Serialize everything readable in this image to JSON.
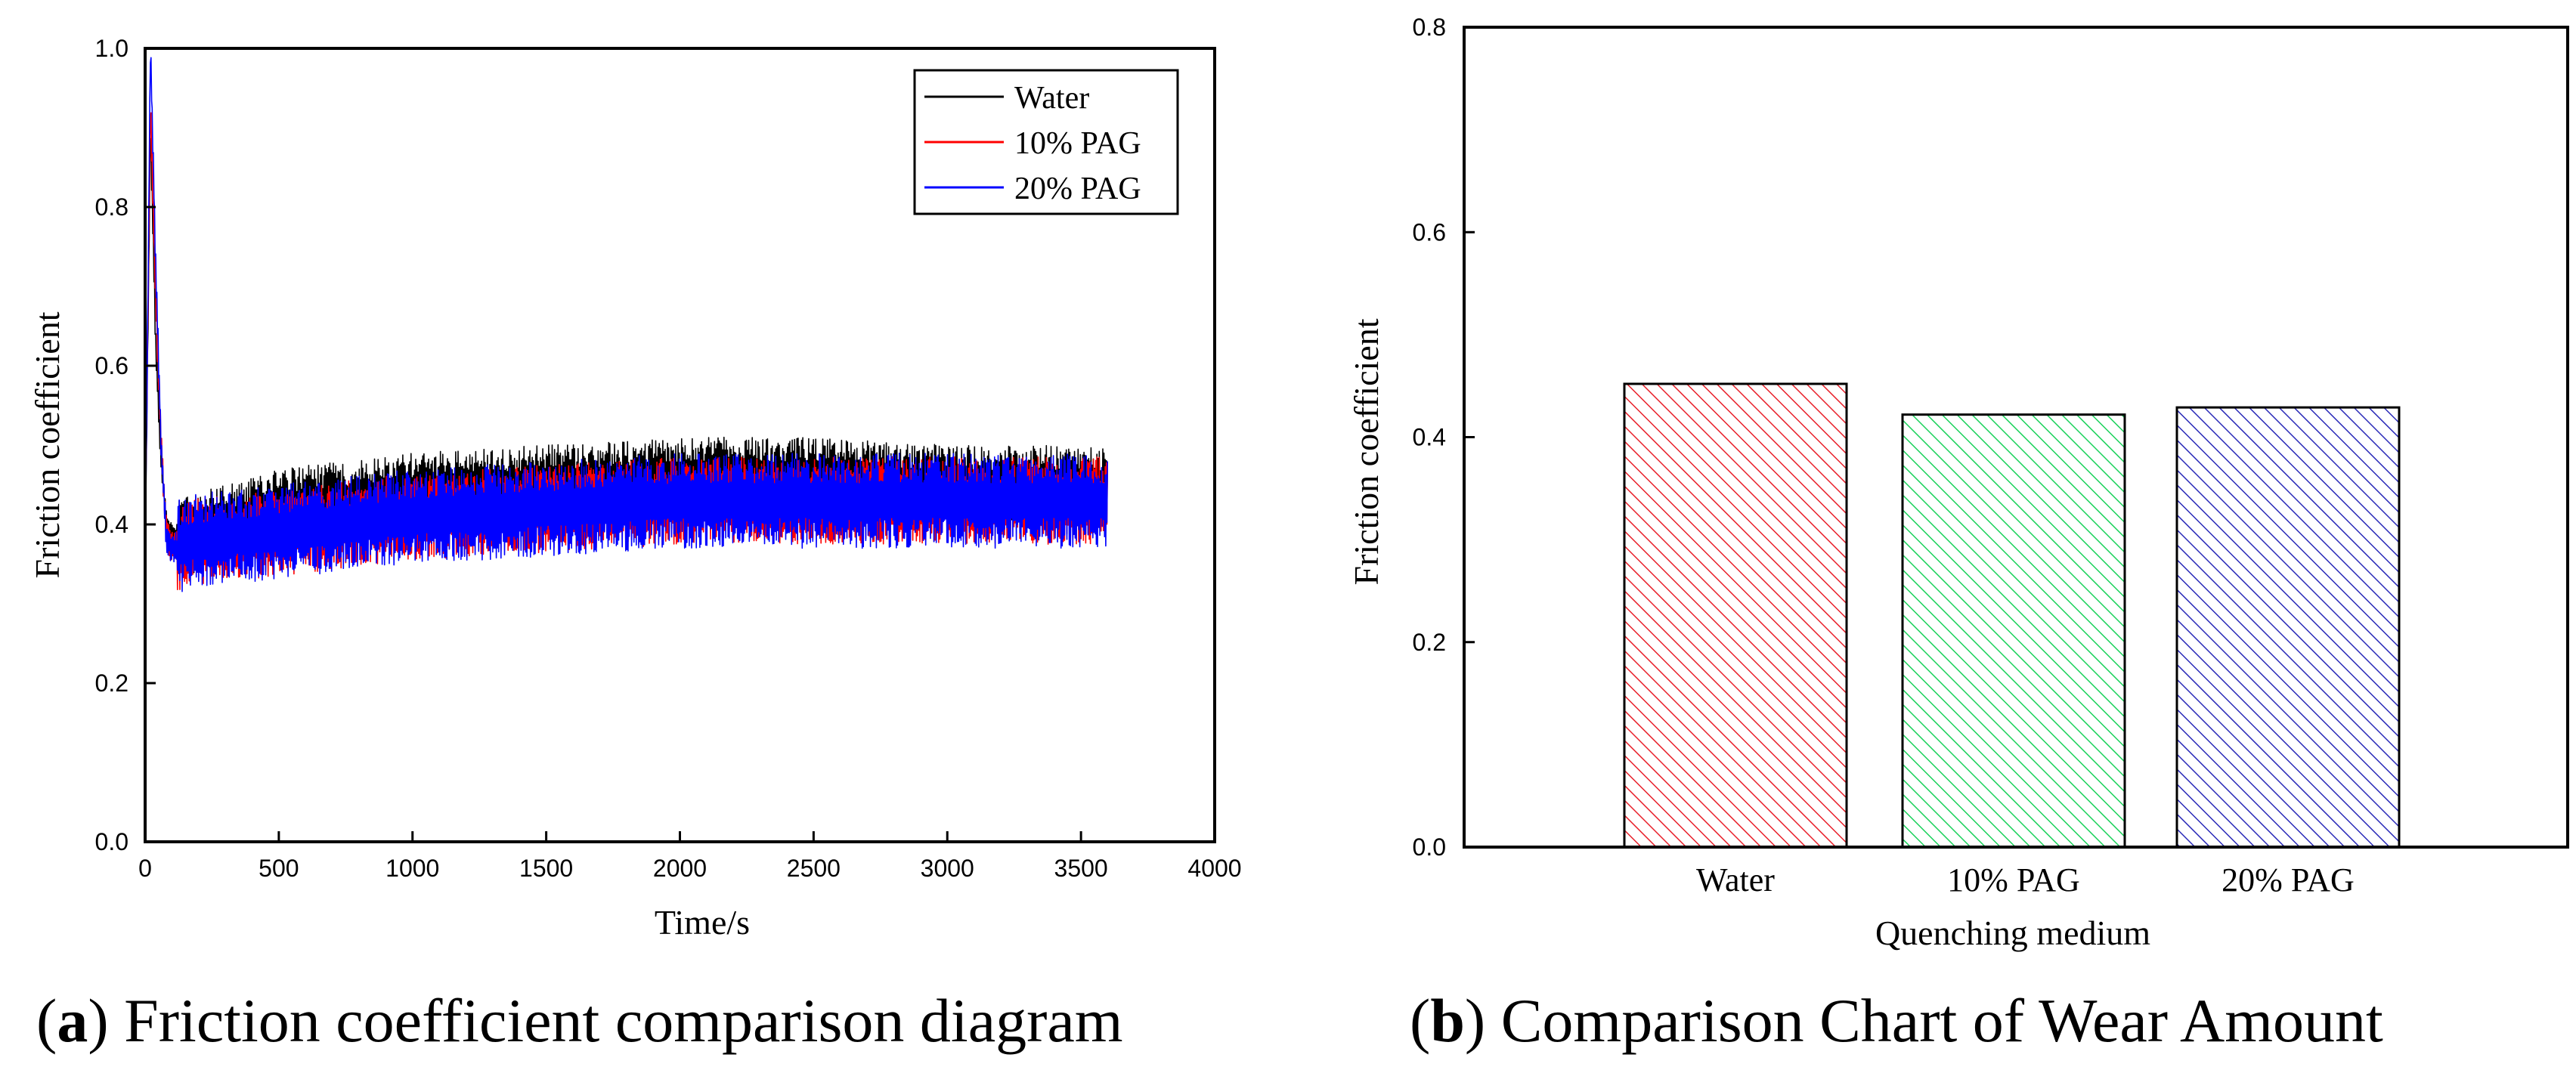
{
  "chart_data": [
    {
      "type": "line",
      "title": "",
      "xlabel": "Time/s",
      "ylabel": "Friction coefficient",
      "xlim": [
        0,
        4000
      ],
      "ylim": [
        0.0,
        1.0
      ],
      "xticks": [
        "0",
        "500",
        "1000",
        "1500",
        "2000",
        "2500",
        "3000",
        "3500",
        "4000"
      ],
      "yticks": [
        "0.0",
        "0.2",
        "0.4",
        "0.6",
        "0.8",
        "1.0"
      ],
      "legend_position": "top-right",
      "series": [
        {
          "name": "Water",
          "color": "#000000",
          "x": [
            0,
            20,
            40,
            60,
            80,
            100,
            200,
            500,
            1000,
            1500,
            2000,
            2500,
            3000,
            3500,
            3600
          ],
          "y": [
            0.36,
            0.9,
            0.62,
            0.48,
            0.4,
            0.38,
            0.39,
            0.42,
            0.44,
            0.45,
            0.46,
            0.46,
            0.45,
            0.45,
            0.45
          ]
        },
        {
          "name": "10% PAG",
          "color": "#ff0000",
          "x": [
            0,
            20,
            40,
            60,
            80,
            100,
            200,
            500,
            1000,
            1500,
            2000,
            2500,
            3000,
            3500,
            3600
          ],
          "y": [
            0.38,
            0.93,
            0.68,
            0.5,
            0.39,
            0.37,
            0.38,
            0.39,
            0.41,
            0.42,
            0.43,
            0.43,
            0.43,
            0.43,
            0.43
          ]
        },
        {
          "name": "20% PAG",
          "color": "#0000ff",
          "x": [
            0,
            20,
            40,
            60,
            80,
            100,
            200,
            500,
            1000,
            1500,
            2000,
            2500,
            3000,
            3500,
            3600
          ],
          "y": [
            0.35,
            1.0,
            0.72,
            0.5,
            0.38,
            0.37,
            0.38,
            0.39,
            0.41,
            0.42,
            0.43,
            0.43,
            0.43,
            0.43,
            0.43
          ]
        }
      ],
      "caption_label": "a",
      "caption_text": "Friction coefficient comparison diagram"
    },
    {
      "type": "bar",
      "title": "",
      "xlabel": "Quenching medium",
      "ylabel": "Friction coefficient",
      "ylim": [
        0.0,
        0.8
      ],
      "yticks": [
        "0.0",
        "0.2",
        "0.4",
        "0.6",
        "0.8"
      ],
      "categories": [
        "Water",
        "10% PAG",
        "20% PAG"
      ],
      "values": [
        0.452,
        0.422,
        0.429
      ],
      "colors": [
        "#e8202a",
        "#1ad15a",
        "#2a2ab8"
      ],
      "caption_label": "b",
      "caption_text": "Comparison Chart of Wear Amount"
    }
  ]
}
